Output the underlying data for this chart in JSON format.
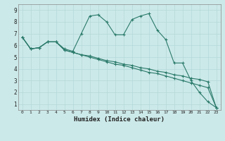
{
  "xlabel": "Humidex (Indice chaleur)",
  "bg_color": "#cce9e9",
  "grid_color": "#b5d8d8",
  "line_color": "#2a7a6a",
  "xlim": [
    -0.5,
    23.5
  ],
  "ylim": [
    0.5,
    9.5
  ],
  "xticks": [
    0,
    1,
    2,
    3,
    4,
    5,
    6,
    7,
    8,
    9,
    10,
    11,
    12,
    13,
    14,
    15,
    16,
    17,
    18,
    19,
    20,
    21,
    22,
    23
  ],
  "yticks": [
    1,
    2,
    3,
    4,
    5,
    6,
    7,
    8,
    9
  ],
  "series": [
    {
      "x": [
        0,
        1,
        2,
        3,
        4,
        5,
        6,
        7,
        8,
        9,
        10,
        11,
        12,
        13,
        14,
        15,
        16,
        17,
        18,
        19,
        20,
        21,
        22,
        23
      ],
      "y": [
        6.7,
        5.7,
        5.8,
        6.3,
        6.3,
        5.7,
        5.5,
        7.0,
        8.5,
        8.6,
        8.0,
        6.9,
        6.9,
        8.2,
        8.5,
        8.7,
        7.3,
        6.5,
        4.5,
        4.5,
        3.0,
        2.0,
        1.2,
        0.7
      ]
    },
    {
      "x": [
        0,
        1,
        2,
        3,
        4,
        5,
        6,
        7,
        8,
        9,
        10,
        11,
        12,
        13,
        14,
        15,
        16,
        17,
        18,
        19,
        20,
        21,
        22,
        23
      ],
      "y": [
        6.7,
        5.7,
        5.8,
        6.3,
        6.3,
        5.6,
        5.4,
        5.2,
        5.1,
        4.9,
        4.7,
        4.6,
        4.4,
        4.3,
        4.1,
        4.0,
        3.8,
        3.7,
        3.5,
        3.4,
        3.2,
        3.1,
        2.9,
        0.7
      ]
    },
    {
      "x": [
        0,
        1,
        2,
        3,
        4,
        5,
        6,
        7,
        8,
        9,
        10,
        11,
        12,
        13,
        14,
        15,
        16,
        17,
        18,
        19,
        20,
        21,
        22,
        23
      ],
      "y": [
        6.7,
        5.7,
        5.8,
        6.3,
        6.3,
        5.6,
        5.4,
        5.2,
        5.0,
        4.8,
        4.6,
        4.4,
        4.3,
        4.1,
        3.9,
        3.7,
        3.6,
        3.4,
        3.2,
        3.0,
        2.8,
        2.6,
        2.4,
        0.7
      ]
    }
  ]
}
